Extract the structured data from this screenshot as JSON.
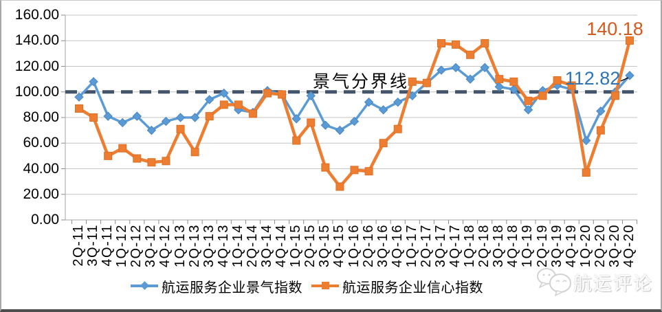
{
  "chart_data": {
    "type": "line",
    "title": "",
    "categories": [
      "2Q-11",
      "3Q-11",
      "4Q-11",
      "1Q-12",
      "2Q-12",
      "3Q-12",
      "4Q-12",
      "1Q-13",
      "2Q-13",
      "3Q-13",
      "4Q-13",
      "1Q-14",
      "2Q-14",
      "3Q-14",
      "4Q-14",
      "1Q-15",
      "2Q-15",
      "3Q-15",
      "4Q-15",
      "1Q-16",
      "2Q-16",
      "3Q-16",
      "4Q-16",
      "1Q-17",
      "2Q-17",
      "3Q-17",
      "4Q-17",
      "1Q-18",
      "2Q-18",
      "3Q-18",
      "4Q-18",
      "1Q-19",
      "2Q-19",
      "3Q-19",
      "4Q-19",
      "1Q-20",
      "2Q-20",
      "3Q-20",
      "4Q-20"
    ],
    "series": [
      {
        "name": "航运服务企业景气指数",
        "color": "#5B9BD5",
        "edge_color": "#4A86C4",
        "marker": "diamond",
        "values": [
          96,
          108,
          81,
          76,
          81,
          70,
          77,
          80,
          80,
          94,
          99,
          86,
          84,
          101,
          98,
          79,
          97,
          74,
          70,
          77,
          92,
          86,
          92,
          97,
          107,
          117,
          119,
          110,
          119,
          104,
          102,
          86,
          101,
          105,
          102,
          62,
          85,
          100,
          112.82
        ]
      },
      {
        "name": "航运服务企业信心指数",
        "color": "#ED7D31",
        "edge_color": "#DD6F26",
        "marker": "square",
        "values": [
          87,
          80,
          50,
          56,
          48,
          45,
          46,
          71,
          53,
          81,
          90,
          90,
          83,
          99,
          98,
          62,
          76,
          41,
          26,
          39,
          38,
          60,
          71,
          108,
          107,
          138,
          137,
          129,
          138,
          110,
          108,
          93,
          97,
          109,
          105,
          37,
          70,
          97,
          140.18
        ]
      }
    ],
    "ylim": [
      0,
      160
    ],
    "ytick_step": 20,
    "ytick_labels": [
      "160.00",
      "140.00",
      "120.00",
      "100.00",
      "80.00",
      "60.00",
      "40.00",
      "20.00",
      "0.00"
    ],
    "grid": "horizontal",
    "legend_position": "bottom",
    "threshold_line": {
      "value": 100,
      "label": "景气分界线",
      "color": "#44546A",
      "style": "dashed"
    },
    "annotations": [
      {
        "series": "航运服务企业信心指数",
        "category": "4Q-20",
        "text": "140.18",
        "color": "#D35B1E"
      },
      {
        "series": "航运服务企业景气指数",
        "category": "4Q-20",
        "text": "112.82",
        "color": "#2E75B6"
      }
    ]
  },
  "watermark": {
    "text": "航运评论"
  },
  "palette": {
    "grid": "#c3c3c3",
    "axis": "#a6a6a6",
    "tick": "#8c8c8c",
    "leader": "#000000"
  }
}
